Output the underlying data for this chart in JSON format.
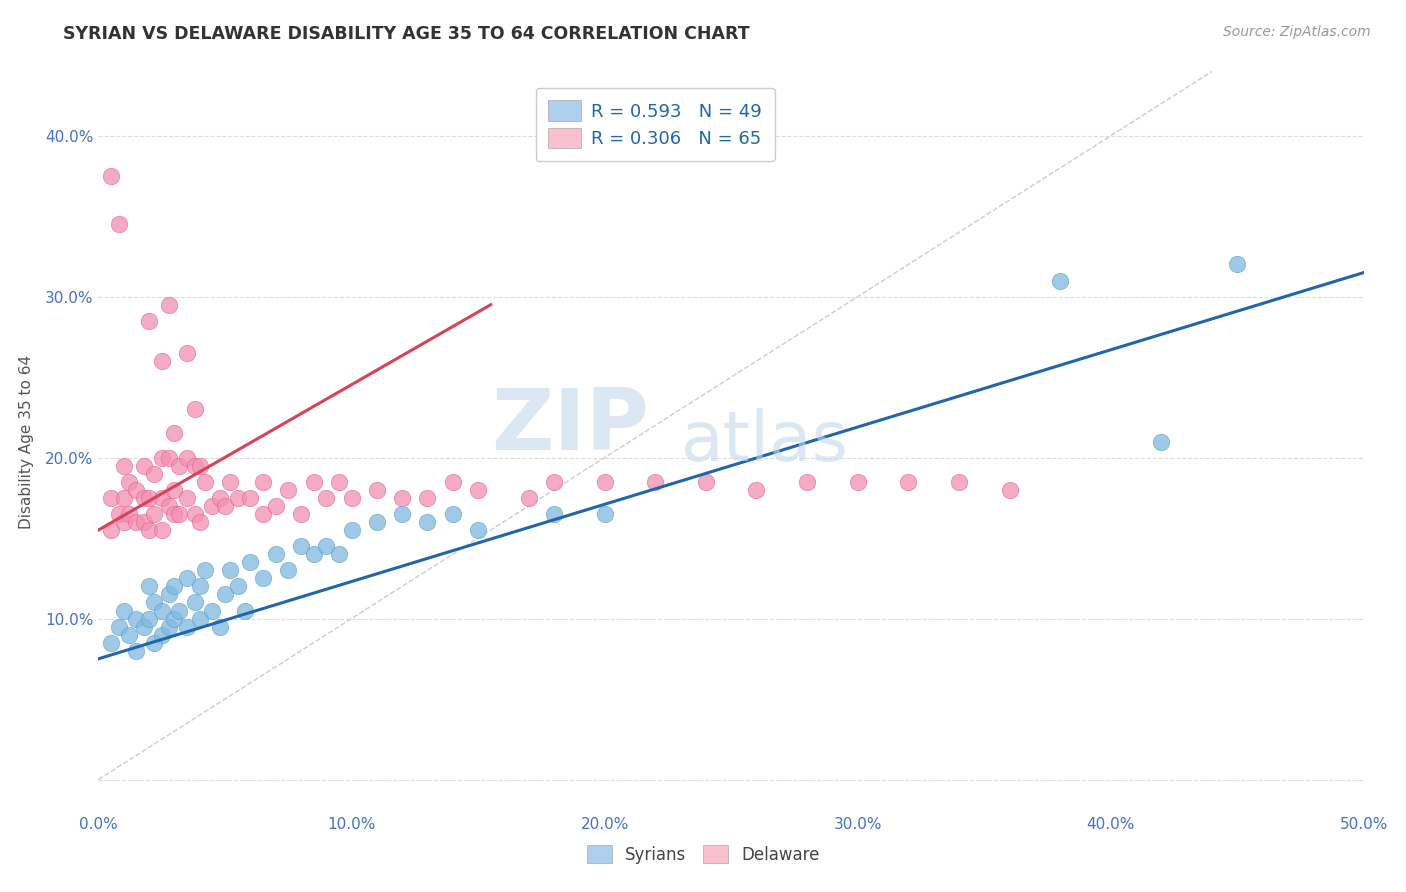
{
  "title": "SYRIAN VS DELAWARE DISABILITY AGE 35 TO 64 CORRELATION CHART",
  "source": "Source: ZipAtlas.com",
  "ylabel": "Disability Age 35 to 64",
  "xlim": [
    0.0,
    0.5
  ],
  "ylim": [
    -0.02,
    0.44
  ],
  "xticks": [
    0.0,
    0.1,
    0.2,
    0.3,
    0.4,
    0.5
  ],
  "yticks": [
    0.0,
    0.1,
    0.2,
    0.3,
    0.4
  ],
  "xticklabels": [
    "0.0%",
    "10.0%",
    "20.0%",
    "30.0%",
    "40.0%",
    "50.0%"
  ],
  "yticklabels": [
    "",
    "10.0%",
    "20.0%",
    "30.0%",
    "40.0%"
  ],
  "watermark_zip": "ZIP",
  "watermark_atlas": "atlas",
  "syrians_color": "#7fb9e0",
  "syrians_edge": "#5a9ec8",
  "delaware_color": "#f48fb1",
  "delaware_edge": "#e06090",
  "line_syrians_color": "#2166ac",
  "line_delaware_color": "#d6435a",
  "legend_box1_color": "#aed0ee",
  "legend_box2_color": "#f9c0d0",
  "legend_text_color": "#2166ac",
  "tick_color": "#4472c4",
  "ylabel_color": "#555555",
  "title_color": "#333333",
  "grid_color": "#dddddd",
  "ref_line_color": "#c0c0c0",
  "syrians_x": [
    0.005,
    0.008,
    0.01,
    0.012,
    0.015,
    0.015,
    0.018,
    0.02,
    0.02,
    0.022,
    0.022,
    0.025,
    0.025,
    0.028,
    0.028,
    0.03,
    0.03,
    0.032,
    0.035,
    0.035,
    0.038,
    0.04,
    0.04,
    0.042,
    0.045,
    0.048,
    0.05,
    0.052,
    0.055,
    0.058,
    0.06,
    0.065,
    0.07,
    0.075,
    0.08,
    0.085,
    0.09,
    0.095,
    0.1,
    0.11,
    0.12,
    0.13,
    0.14,
    0.15,
    0.18,
    0.2,
    0.38,
    0.42,
    0.45
  ],
  "syrians_y": [
    0.085,
    0.095,
    0.105,
    0.09,
    0.08,
    0.1,
    0.095,
    0.1,
    0.12,
    0.085,
    0.11,
    0.09,
    0.105,
    0.095,
    0.115,
    0.1,
    0.12,
    0.105,
    0.095,
    0.125,
    0.11,
    0.1,
    0.12,
    0.13,
    0.105,
    0.095,
    0.115,
    0.13,
    0.12,
    0.105,
    0.135,
    0.125,
    0.14,
    0.13,
    0.145,
    0.14,
    0.145,
    0.14,
    0.155,
    0.16,
    0.165,
    0.16,
    0.165,
    0.155,
    0.165,
    0.165,
    0.31,
    0.21,
    0.32
  ],
  "delaware_x": [
    0.005,
    0.005,
    0.008,
    0.01,
    0.01,
    0.01,
    0.012,
    0.012,
    0.015,
    0.015,
    0.018,
    0.018,
    0.018,
    0.02,
    0.02,
    0.022,
    0.022,
    0.025,
    0.025,
    0.025,
    0.028,
    0.028,
    0.03,
    0.03,
    0.03,
    0.032,
    0.032,
    0.035,
    0.035,
    0.038,
    0.038,
    0.04,
    0.04,
    0.042,
    0.045,
    0.048,
    0.05,
    0.052,
    0.055,
    0.06,
    0.065,
    0.065,
    0.07,
    0.075,
    0.08,
    0.085,
    0.09,
    0.095,
    0.1,
    0.11,
    0.12,
    0.13,
    0.14,
    0.15,
    0.17,
    0.18,
    0.2,
    0.22,
    0.24,
    0.26,
    0.28,
    0.3,
    0.32,
    0.34,
    0.36
  ],
  "delaware_y": [
    0.155,
    0.175,
    0.165,
    0.16,
    0.175,
    0.195,
    0.165,
    0.185,
    0.16,
    0.18,
    0.16,
    0.175,
    0.195,
    0.155,
    0.175,
    0.165,
    0.19,
    0.155,
    0.175,
    0.2,
    0.17,
    0.2,
    0.165,
    0.18,
    0.215,
    0.165,
    0.195,
    0.175,
    0.2,
    0.165,
    0.195,
    0.16,
    0.195,
    0.185,
    0.17,
    0.175,
    0.17,
    0.185,
    0.175,
    0.175,
    0.165,
    0.185,
    0.17,
    0.18,
    0.165,
    0.185,
    0.175,
    0.185,
    0.175,
    0.18,
    0.175,
    0.175,
    0.185,
    0.18,
    0.175,
    0.185,
    0.185,
    0.185,
    0.185,
    0.18,
    0.185,
    0.185,
    0.185,
    0.185,
    0.18
  ],
  "delaware_outliers_x": [
    0.005,
    0.008,
    0.02,
    0.025,
    0.028,
    0.035,
    0.038
  ],
  "delaware_outliers_y": [
    0.375,
    0.345,
    0.285,
    0.26,
    0.295,
    0.265,
    0.23
  ],
  "syrians_line_x0": 0.0,
  "syrians_line_x1": 0.5,
  "syrians_line_y0": 0.075,
  "syrians_line_y1": 0.315,
  "delaware_line_x0": 0.0,
  "delaware_line_x1": 0.155,
  "delaware_line_y0": 0.155,
  "delaware_line_y1": 0.295,
  "ref_line_x0": 0.0,
  "ref_line_x1": 0.44,
  "ref_line_y0": 0.0,
  "ref_line_y1": 0.44
}
